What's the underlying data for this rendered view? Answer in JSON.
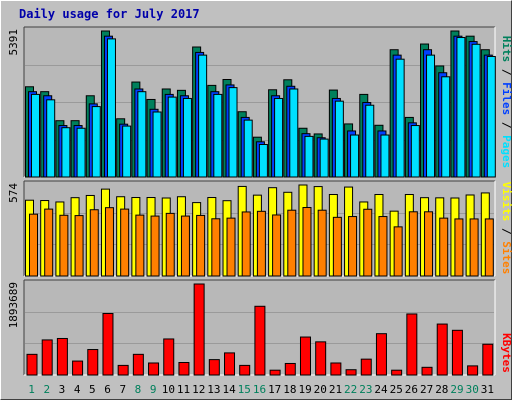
{
  "title": "Daily usage for July 2017",
  "colors": {
    "background": "#c0c0c0",
    "panel": "#b8b8b8",
    "title": "#0000aa",
    "hits": "#00805c",
    "files": "#0040ff",
    "pages": "#00e0ff",
    "visits": "#ffff00",
    "sites": "#ff8000",
    "kbytes": "#ff0000",
    "weekend_day": "#00805c",
    "weekday": "#000000"
  },
  "chart_data": [
    {
      "type": "bar",
      "panel": "traffic",
      "categories": [
        "1",
        "2",
        "3",
        "4",
        "5",
        "6",
        "7",
        "8",
        "9",
        "10",
        "11",
        "12",
        "13",
        "14",
        "15",
        "16",
        "17",
        "18",
        "19",
        "20",
        "21",
        "22",
        "23",
        "24",
        "25",
        "26",
        "27",
        "28",
        "29",
        "30",
        "31"
      ],
      "weekend_days": [
        1,
        2,
        8,
        9,
        15,
        16,
        22,
        23,
        29,
        30
      ],
      "ymax_label": "5391",
      "ylim": [
        0,
        5391
      ],
      "grid": true,
      "series": [
        {
          "name": "Hits",
          "values": [
            3332,
            3151,
            2079,
            2080,
            3000,
            5391,
            2150,
            3506,
            2863,
            3250,
            3200,
            4800,
            3383,
            3600,
            2410,
            1470,
            3221,
            3590,
            1800,
            1590,
            3210,
            1960,
            3050,
            1910,
            4700,
            2200,
            4910,
            4100,
            5391,
            5200,
            4700
          ]
        },
        {
          "name": "Files",
          "values": [
            3150,
            3000,
            1900,
            1900,
            2700,
            5200,
            1950,
            3250,
            2500,
            3050,
            3000,
            4600,
            3150,
            3400,
            2200,
            1300,
            3000,
            3350,
            1600,
            1450,
            2900,
            1700,
            2750,
            1700,
            4500,
            2000,
            4700,
            3850,
            5200,
            5000,
            4500
          ]
        },
        {
          "name": "Pages",
          "values": [
            3050,
            2850,
            1820,
            1800,
            2600,
            5100,
            1880,
            3150,
            2400,
            2950,
            2900,
            4500,
            3050,
            3300,
            2100,
            1200,
            2900,
            3250,
            1500,
            1400,
            2800,
            1550,
            2650,
            1550,
            4350,
            1900,
            4500,
            3700,
            5150,
            4900,
            4450
          ]
        }
      ]
    },
    {
      "type": "bar",
      "panel": "visitors",
      "categories": [
        "1",
        "2",
        "3",
        "4",
        "5",
        "6",
        "7",
        "8",
        "9",
        "10",
        "11",
        "12",
        "13",
        "14",
        "15",
        "16",
        "17",
        "18",
        "19",
        "20",
        "21",
        "22",
        "23",
        "24",
        "25",
        "26",
        "27",
        "28",
        "29",
        "30",
        "31"
      ],
      "ymax_label": "574",
      "ylim": [
        0,
        574
      ],
      "grid": true,
      "series": [
        {
          "name": "Visits",
          "values": [
            478,
            476,
            467,
            494,
            508,
            548,
            500,
            495,
            495,
            492,
            500,
            463,
            495,
            475,
            565,
            510,
            557,
            528,
            574,
            564,
            514,
            561,
            467,
            514,
            409,
            514,
            494,
            493,
            492,
            511,
            524
          ]
        },
        {
          "name": "Sites",
          "values": [
            390,
            422,
            383,
            381,
            418,
            431,
            422,
            384,
            378,
            395,
            378,
            382,
            361,
            365,
            404,
            408,
            385,
            415,
            432,
            415,
            370,
            375,
            421,
            375,
            310,
            405,
            405,
            365,
            360,
            360,
            360
          ]
        }
      ]
    },
    {
      "type": "bar",
      "panel": "volume",
      "categories": [
        "1",
        "2",
        "3",
        "4",
        "5",
        "6",
        "7",
        "8",
        "9",
        "10",
        "11",
        "12",
        "13",
        "14",
        "15",
        "16",
        "17",
        "18",
        "19",
        "20",
        "21",
        "22",
        "23",
        "24",
        "25",
        "26",
        "27",
        "28",
        "29",
        "30",
        "31"
      ],
      "ymax_label": "1893689",
      "ylim": [
        0,
        1893689
      ],
      "grid": true,
      "series": [
        {
          "name": "KBytes",
          "values": [
            430000,
            730000,
            760000,
            290000,
            530000,
            1280000,
            200000,
            430000,
            250000,
            750000,
            260000,
            1893689,
            320000,
            460000,
            200000,
            1430000,
            100000,
            240000,
            790000,
            690000,
            250000,
            110000,
            330000,
            860000,
            100000,
            1270000,
            160000,
            1060000,
            930000,
            190000,
            640000
          ]
        }
      ]
    }
  ]
}
